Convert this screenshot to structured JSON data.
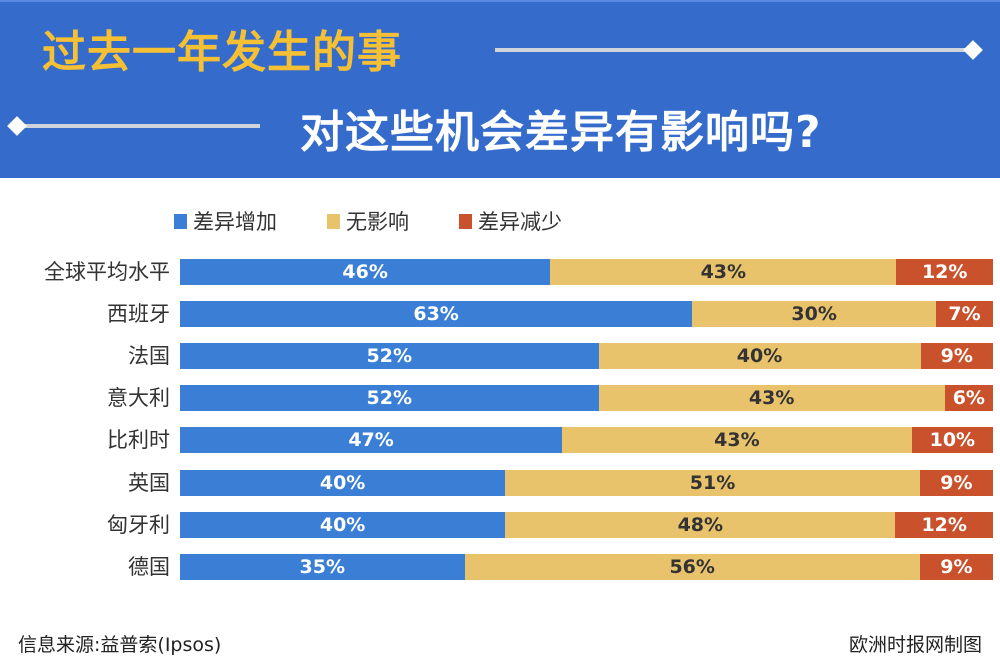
{
  "header": {
    "title_line1": "过去一年发生的事",
    "title_line2": "对这些机会差异有影响吗?"
  },
  "footer": {
    "source": "信息来源:益普索(Ipsos)",
    "credit": "欧洲时报网制图"
  },
  "chart_data": {
    "type": "bar",
    "orientation": "horizontal-stacked",
    "title": "过去一年发生的事对这些机会差异有影响吗?",
    "categories": [
      "全球平均水平",
      "西班牙",
      "法国",
      "意大利",
      "比利时",
      "英国",
      "匈牙利",
      "德国"
    ],
    "series": [
      {
        "name": "差异增加",
        "color": "#3a7fd5",
        "label_color": "#ffffff",
        "values": [
          46,
          63,
          52,
          52,
          47,
          40,
          40,
          35
        ]
      },
      {
        "name": "无影响",
        "color": "#e8c36c",
        "label_color": "#333333",
        "values": [
          43,
          30,
          40,
          43,
          43,
          51,
          48,
          56
        ]
      },
      {
        "name": "差异减少",
        "color": "#c9512b",
        "label_color": "#ffffff",
        "values": [
          12,
          7,
          9,
          6,
          10,
          9,
          12,
          9
        ]
      }
    ],
    "value_suffix": "%",
    "legend_position": "top",
    "grid": false
  }
}
